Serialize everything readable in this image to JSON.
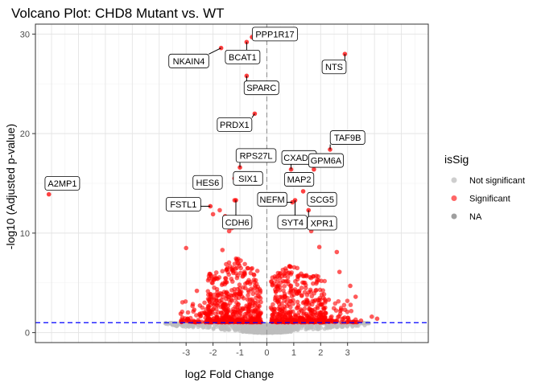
{
  "chart_data": {
    "type": "scatter",
    "title": "Volcano Plot: CHD8 Mutant vs. WT",
    "xlabel": "log2 Fold Change",
    "ylabel": "-log10 (Adjusted p-value)",
    "xlim": [
      -8.6,
      6.0
    ],
    "ylim": [
      -1.0,
      31.0
    ],
    "x_ticks": [
      -3,
      -2,
      -1,
      0,
      1,
      2,
      3
    ],
    "x_tick_labels": [
      "-3",
      "-2",
      "-1",
      "0",
      "1",
      "2",
      "3"
    ],
    "y_ticks": [
      0,
      10,
      20,
      30
    ],
    "y_tick_labels": [
      "0",
      "10",
      "20",
      "30"
    ],
    "grid": true,
    "vline_x": 0,
    "hline_y": 1.0,
    "legend": {
      "title": "isSig",
      "placement": "right",
      "entries": [
        {
          "label": "Not significant",
          "color": "#bebebe"
        },
        {
          "label": "Significant",
          "color": "#ff0000"
        },
        {
          "label": "NA",
          "color": "#7f7f7f"
        }
      ]
    },
    "colors": {
      "significant": "#ff0000",
      "not_significant": "#bebebe",
      "threshold_line": "#0000ff",
      "vline": "#999999"
    },
    "labeled_genes": [
      {
        "name": "PPP1R17",
        "x": -0.55,
        "y": 29.7,
        "lx": 0.3,
        "ly": 30.0
      },
      {
        "name": "BCAT1",
        "x": -0.75,
        "y": 29.2,
        "lx": -0.9,
        "ly": 27.7
      },
      {
        "name": "NKAIN4",
        "x": -1.7,
        "y": 28.6,
        "lx": -2.9,
        "ly": 27.3
      },
      {
        "name": "NTS",
        "x": 2.9,
        "y": 28.0,
        "lx": 2.5,
        "ly": 26.7
      },
      {
        "name": "SPARC",
        "x": -0.75,
        "y": 25.8,
        "lx": -0.2,
        "ly": 24.6
      },
      {
        "name": "PRDX1",
        "x": -0.45,
        "y": 22.0,
        "lx": -1.2,
        "ly": 20.9
      },
      {
        "name": "TAF9B",
        "x": 2.35,
        "y": 18.4,
        "lx": 3.0,
        "ly": 19.6
      },
      {
        "name": "RPS27L",
        "x": -1.0,
        "y": 16.6,
        "lx": -0.4,
        "ly": 17.8
      },
      {
        "name": "CXADR",
        "x": 0.9,
        "y": 16.4,
        "lx": 1.2,
        "ly": 17.6
      },
      {
        "name": "GPM6A",
        "x": 1.75,
        "y": 16.4,
        "lx": 2.2,
        "ly": 17.3
      },
      {
        "name": "A2MP1",
        "x": -8.1,
        "y": 13.9,
        "lx": -7.6,
        "ly": 15.0
      },
      {
        "name": "SIX1",
        "x": -1.2,
        "y": 15.5,
        "lx": -0.7,
        "ly": 15.5
      },
      {
        "name": "HES6",
        "x": -1.85,
        "y": 14.7,
        "lx": -2.2,
        "ly": 15.1
      },
      {
        "name": "MAP2",
        "x": 1.1,
        "y": 15.0,
        "lx": 1.2,
        "ly": 15.4
      },
      {
        "name": "NEFM",
        "x": 0.95,
        "y": 13.1,
        "lx": 0.2,
        "ly": 13.4
      },
      {
        "name": "SCG5",
        "x": 1.35,
        "y": 14.2,
        "lx": 2.05,
        "ly": 13.4
      },
      {
        "name": "FSTL1",
        "x": -2.1,
        "y": 12.7,
        "lx": -3.1,
        "ly": 12.9
      },
      {
        "name": "SYT4",
        "x": 1.05,
        "y": 13.3,
        "lx": 0.95,
        "ly": 11.1
      },
      {
        "name": "XPR1",
        "x": 1.55,
        "y": 12.3,
        "lx": 2.05,
        "ly": 11.0
      },
      {
        "name": "CDH6",
        "x": -1.15,
        "y": 13.3,
        "lx": -1.1,
        "ly": 11.1
      }
    ],
    "significant_points": [
      {
        "x": -1.2,
        "y": 13.3
      },
      {
        "x": -1.3,
        "y": 10.5
      },
      {
        "x": -1.75,
        "y": 12.3
      },
      {
        "x": -1.55,
        "y": 11.7
      },
      {
        "x": -2.0,
        "y": 11.9
      },
      {
        "x": -1.05,
        "y": 11.5
      },
      {
        "x": -1.4,
        "y": 10.2
      },
      {
        "x": -3.0,
        "y": 8.5
      },
      {
        "x": -1.65,
        "y": 8.3
      },
      {
        "x": -0.95,
        "y": 10.9
      },
      {
        "x": 1.0,
        "y": 10.6
      },
      {
        "x": 1.65,
        "y": 10.2
      },
      {
        "x": 1.45,
        "y": 11.2
      },
      {
        "x": 1.95,
        "y": 8.6
      },
      {
        "x": 2.6,
        "y": 8.1
      },
      {
        "x": 1.2,
        "y": 10.9
      },
      {
        "x": 2.7,
        "y": 6.1
      },
      {
        "x": 3.1,
        "y": 4.7
      },
      {
        "x": 3.3,
        "y": 3.6
      },
      {
        "x": 3.9,
        "y": 1.6
      },
      {
        "x": 4.1,
        "y": 1.4
      },
      {
        "x": 3.5,
        "y": 1.2
      },
      {
        "x": 2.3,
        "y": 3.3
      },
      {
        "x": 2.9,
        "y": 2.3
      },
      {
        "x": -2.6,
        "y": 4.2
      },
      {
        "x": -2.7,
        "y": 2.3
      },
      {
        "x": -3.2,
        "y": 1.9
      },
      {
        "x": -2.9,
        "y": 1.2
      }
    ]
  }
}
